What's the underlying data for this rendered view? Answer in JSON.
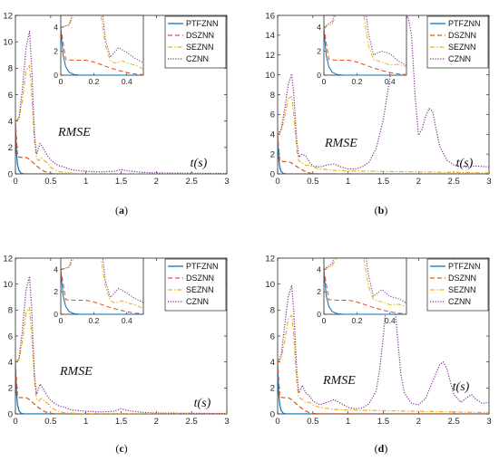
{
  "colors": {
    "PTFZNN": "#0072BD",
    "DSZNN": "#D95319",
    "SEZNN": "#EDB120",
    "CZNN": "#7E2F8E"
  },
  "chart_data": [
    {
      "type": "line",
      "caption": "(a)",
      "annotation_rmse": "RMSE",
      "annotation_t": "t(s)",
      "xlim": [
        0,
        3
      ],
      "ylim": [
        0,
        12
      ],
      "xticks": [
        0,
        0.5,
        1,
        1.5,
        2,
        2.5,
        3
      ],
      "yticks": [
        0,
        2,
        4,
        6,
        8,
        10,
        12
      ],
      "series": [
        {
          "name": "PTFZNN",
          "style": "solid",
          "x": [
            0,
            0.005,
            0.015,
            0.03,
            0.05,
            0.08,
            0.12,
            3
          ],
          "y": [
            4.0,
            3.0,
            1.6,
            0.7,
            0.25,
            0.05,
            0,
            0
          ]
        },
        {
          "name": "DSZNN",
          "style": "dashed",
          "x": [
            0,
            0.03,
            0.08,
            0.15,
            0.2,
            0.25,
            0.3,
            0.35,
            0.4,
            0.45,
            0.5,
            0.6,
            3
          ],
          "y": [
            4.0,
            1.3,
            1.25,
            1.25,
            1.1,
            0.85,
            0.6,
            0.4,
            0.22,
            0.1,
            0.04,
            0,
            0
          ]
        },
        {
          "name": "SEZNN",
          "style": "dashdot",
          "x": [
            0,
            0.05,
            0.1,
            0.15,
            0.2,
            0.23,
            0.27,
            0.3,
            0.33,
            0.37,
            0.42,
            0.46,
            0.5,
            0.6,
            0.7,
            1.0,
            3
          ],
          "y": [
            4.0,
            4.2,
            5.6,
            7.8,
            8.2,
            6.2,
            2.5,
            1.2,
            1.0,
            1.2,
            0.95,
            0.8,
            0.5,
            0.2,
            0.08,
            0,
            0
          ]
        },
        {
          "name": "CZNN",
          "style": "dotted",
          "x": [
            0,
            0.05,
            0.1,
            0.15,
            0.2,
            0.23,
            0.27,
            0.3,
            0.35,
            0.4,
            0.45,
            0.5,
            0.6,
            0.7,
            0.8,
            1.0,
            1.2,
            1.4,
            1.5,
            1.6,
            1.8,
            2.0,
            2.5,
            3.0
          ],
          "y": [
            4.0,
            4.2,
            6.5,
            9.5,
            10.8,
            8.2,
            3.0,
            1.5,
            2.3,
            1.9,
            1.4,
            1.05,
            0.65,
            0.5,
            0.3,
            0.2,
            0.15,
            0.2,
            0.32,
            0.22,
            0.12,
            0.07,
            0.05,
            0.03
          ]
        }
      ]
    },
    {
      "type": "line",
      "caption": "(b)",
      "annotation_rmse": "RMSE",
      "annotation_t": "t(s)",
      "xlim": [
        0,
        3
      ],
      "ylim": [
        0,
        16
      ],
      "xticks": [
        0,
        0.5,
        1,
        1.5,
        2,
        2.5,
        3
      ],
      "yticks": [
        0,
        2,
        4,
        6,
        8,
        10,
        12,
        14,
        16
      ],
      "series": [
        {
          "name": "PTFZNN",
          "style": "solid",
          "x": [
            0,
            0.005,
            0.015,
            0.03,
            0.05,
            0.08,
            0.12,
            3
          ],
          "y": [
            4.0,
            3.0,
            1.6,
            0.7,
            0.25,
            0.05,
            0,
            0
          ]
        },
        {
          "name": "DSZNN",
          "style": "dashed",
          "x": [
            0,
            0.03,
            0.08,
            0.15,
            0.2,
            0.25,
            0.3,
            0.35,
            0.4,
            0.45,
            0.5,
            0.6,
            3
          ],
          "y": [
            4.0,
            1.3,
            1.25,
            1.25,
            1.1,
            0.85,
            0.6,
            0.4,
            0.22,
            0.1,
            0.04,
            0,
            0
          ]
        },
        {
          "name": "SEZNN",
          "style": "dashdot",
          "x": [
            0,
            0.05,
            0.1,
            0.15,
            0.2,
            0.23,
            0.27,
            0.3,
            0.35,
            0.4,
            0.45,
            0.5,
            0.6,
            0.8,
            1.0,
            1.5,
            2.0,
            2.5,
            3.0
          ],
          "y": [
            4.0,
            4.3,
            5.8,
            7.6,
            7.8,
            6.0,
            2.5,
            1.3,
            1.1,
            0.85,
            0.9,
            0.7,
            0.5,
            0.35,
            0.3,
            0.25,
            0.2,
            0.15,
            0.1
          ]
        },
        {
          "name": "CZNN",
          "style": "dotted",
          "x": [
            0,
            0.05,
            0.1,
            0.15,
            0.2,
            0.23,
            0.27,
            0.3,
            0.35,
            0.4,
            0.45,
            0.5,
            0.6,
            0.7,
            0.8,
            0.9,
            1.0,
            1.1,
            1.2,
            1.3,
            1.4,
            1.5,
            1.6,
            1.7,
            1.8,
            1.85,
            1.9,
            1.95,
            2.0,
            2.05,
            2.1,
            2.15,
            2.2,
            2.25,
            2.3,
            2.4,
            2.5,
            2.6,
            2.7,
            2.8,
            2.9,
            3.0
          ],
          "y": [
            4.0,
            4.5,
            6.5,
            9.0,
            10.1,
            8.0,
            3.5,
            1.7,
            2.0,
            1.8,
            1.2,
            0.8,
            0.7,
            0.9,
            1.0,
            0.7,
            0.5,
            0.5,
            0.7,
            1.2,
            2.6,
            5.5,
            10.0,
            14.0,
            15.7,
            15.9,
            14.0,
            8.0,
            3.9,
            4.5,
            5.8,
            6.6,
            6.3,
            4.5,
            2.8,
            1.4,
            0.9,
            0.75,
            0.7,
            0.8,
            0.75,
            0.7
          ]
        }
      ]
    },
    {
      "type": "line",
      "caption": "(c)",
      "annotation_rmse": "RMSE",
      "annotation_t": "t(s)",
      "xlim": [
        0,
        3
      ],
      "ylim": [
        0,
        12
      ],
      "xticks": [
        0,
        0.5,
        1,
        1.5,
        2,
        2.5,
        3
      ],
      "yticks": [
        0,
        2,
        4,
        6,
        8,
        10,
        12
      ],
      "series": [
        {
          "name": "PTFZNN",
          "style": "solid",
          "x": [
            0,
            0.005,
            0.015,
            0.03,
            0.05,
            0.08,
            0.12,
            3
          ],
          "y": [
            4.0,
            3.0,
            1.6,
            0.7,
            0.25,
            0.05,
            0,
            0
          ]
        },
        {
          "name": "DSZNN",
          "style": "dashed",
          "x": [
            0,
            0.03,
            0.08,
            0.15,
            0.2,
            0.25,
            0.3,
            0.35,
            0.4,
            0.45,
            0.5,
            0.6,
            3
          ],
          "y": [
            4.0,
            1.3,
            1.25,
            1.25,
            1.1,
            0.85,
            0.6,
            0.4,
            0.22,
            0.1,
            0.04,
            0,
            0
          ]
        },
        {
          "name": "SEZNN",
          "style": "dashdot",
          "x": [
            0,
            0.05,
            0.1,
            0.15,
            0.2,
            0.23,
            0.27,
            0.3,
            0.33,
            0.37,
            0.42,
            0.46,
            0.5,
            0.6,
            0.7,
            1.0,
            3
          ],
          "y": [
            4.0,
            4.2,
            5.6,
            7.8,
            8.2,
            6.2,
            2.5,
            1.2,
            1.0,
            1.2,
            0.95,
            0.8,
            0.5,
            0.2,
            0.08,
            0,
            0
          ]
        },
        {
          "name": "CZNN",
          "style": "dotted",
          "x": [
            0,
            0.05,
            0.1,
            0.15,
            0.2,
            0.23,
            0.27,
            0.3,
            0.35,
            0.4,
            0.45,
            0.5,
            0.6,
            0.7,
            0.8,
            1.0,
            1.2,
            1.4,
            1.5,
            1.6,
            1.8,
            2.0,
            2.5,
            3.0
          ],
          "y": [
            4.0,
            4.2,
            6.5,
            9.5,
            10.6,
            8.2,
            3.0,
            1.5,
            2.3,
            1.9,
            1.4,
            1.05,
            0.65,
            0.5,
            0.3,
            0.2,
            0.15,
            0.2,
            0.4,
            0.25,
            0.12,
            0.07,
            0.05,
            0.03
          ]
        }
      ]
    },
    {
      "type": "line",
      "caption": "(d)",
      "annotation_rmse": "RMSE",
      "annotation_t": "t(s)",
      "xlim": [
        0,
        3
      ],
      "ylim": [
        0,
        12
      ],
      "xticks": [
        0,
        0.5,
        1,
        1.5,
        2,
        2.5,
        3
      ],
      "yticks": [
        0,
        2,
        4,
        6,
        8,
        10,
        12
      ],
      "series": [
        {
          "name": "PTFZNN",
          "style": "solid",
          "x": [
            0,
            0.005,
            0.015,
            0.03,
            0.05,
            0.08,
            0.12,
            3
          ],
          "y": [
            4.0,
            3.0,
            1.6,
            0.7,
            0.25,
            0.05,
            0,
            0
          ]
        },
        {
          "name": "DSZNN",
          "style": "dashed",
          "x": [
            0,
            0.03,
            0.08,
            0.15,
            0.2,
            0.25,
            0.3,
            0.35,
            0.4,
            0.45,
            0.5,
            0.6,
            3
          ],
          "y": [
            4.0,
            1.3,
            1.25,
            1.25,
            1.1,
            0.85,
            0.6,
            0.4,
            0.22,
            0.1,
            0.04,
            0,
            0
          ]
        },
        {
          "name": "SEZNN",
          "style": "dashdot",
          "x": [
            0,
            0.05,
            0.1,
            0.15,
            0.2,
            0.23,
            0.27,
            0.3,
            0.35,
            0.4,
            0.45,
            0.5,
            0.6,
            0.8,
            1.0,
            1.5,
            2.0,
            2.5,
            3.0
          ],
          "y": [
            4.0,
            4.3,
            5.6,
            7.3,
            7.6,
            6.0,
            2.5,
            1.3,
            1.1,
            0.85,
            0.9,
            0.7,
            0.5,
            0.35,
            0.3,
            0.25,
            0.2,
            0.15,
            0.1
          ]
        },
        {
          "name": "CZNN",
          "style": "dotted",
          "x": [
            0,
            0.05,
            0.1,
            0.15,
            0.2,
            0.23,
            0.27,
            0.3,
            0.35,
            0.4,
            0.45,
            0.5,
            0.6,
            0.7,
            0.8,
            0.9,
            1.0,
            1.1,
            1.2,
            1.3,
            1.4,
            1.45,
            1.5,
            1.55,
            1.6,
            1.65,
            1.7,
            1.75,
            1.8,
            1.9,
            2.0,
            2.1,
            2.2,
            2.3,
            2.35,
            2.4,
            2.5,
            2.6,
            2.7,
            2.75,
            2.8,
            2.9,
            3.0
          ],
          "y": [
            4.0,
            4.5,
            6.8,
            9.0,
            9.9,
            7.8,
            3.5,
            1.6,
            2.2,
            1.6,
            1.4,
            1.0,
            0.7,
            0.9,
            1.1,
            0.8,
            0.5,
            0.4,
            0.45,
            0.8,
            1.8,
            3.5,
            6.0,
            9.0,
            10.0,
            9.0,
            6.0,
            3.0,
            1.6,
            0.8,
            0.7,
            1.2,
            2.5,
            3.8,
            4.0,
            3.5,
            1.5,
            0.9,
            1.3,
            1.5,
            1.2,
            0.8,
            0.9
          ]
        }
      ]
    }
  ]
}
